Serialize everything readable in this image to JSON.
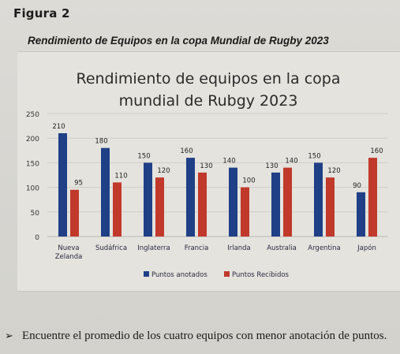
{
  "figure": {
    "label": "Figura 2",
    "caption": "Rendimiento de Equipos en la copa Mundial de Rugby 2023"
  },
  "chart_data": {
    "type": "bar",
    "title_lines": [
      "Rendimiento de equipos en la copa",
      "mundial de Rubgy 2023"
    ],
    "categories": [
      [
        "Nueva",
        "Zelanda"
      ],
      [
        "Sudáfrica"
      ],
      [
        "Inglaterra"
      ],
      [
        "Francia"
      ],
      [
        "Irlanda"
      ],
      [
        "Australia"
      ],
      [
        "Argentina"
      ],
      [
        "Japón"
      ]
    ],
    "series": [
      {
        "name": "Puntos anotados",
        "color": "#1f3f86",
        "values": [
          210,
          180,
          150,
          160,
          140,
          130,
          150,
          90
        ]
      },
      {
        "name": "Puntos Recibidos",
        "color": "#c0392b",
        "values": [
          95,
          110,
          120,
          130,
          100,
          140,
          120,
          160
        ]
      }
    ],
    "ylim": [
      0,
      250
    ],
    "yticks": [
      0,
      50,
      100,
      150,
      200,
      250
    ],
    "grid": true,
    "legend_position": "bottom"
  },
  "question": {
    "bullet": "➢",
    "text": "Encuentre el promedio de los cuatro equipos con menor anotación de puntos."
  }
}
